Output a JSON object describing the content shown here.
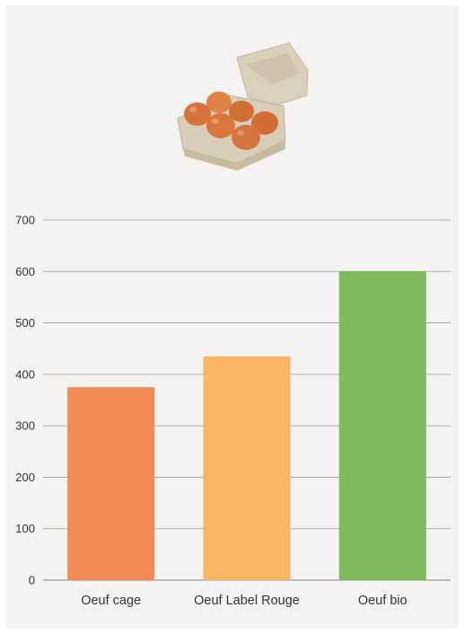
{
  "colors": {
    "background": "#f5f3f1",
    "gridline": "#9a9a9a",
    "text": "#333333",
    "carton": "#d8cdb8",
    "egg": "#d9773f"
  },
  "illustration": {
    "icon": "egg-carton-icon"
  },
  "chart_data": {
    "type": "bar",
    "categories": [
      "Oeuf cage",
      "Oeuf Label Rouge",
      "Oeuf bio"
    ],
    "values": [
      375,
      435,
      600
    ],
    "colors": [
      "#f28c55",
      "#f8b564",
      "#7dbb5d"
    ],
    "ylim": [
      0,
      700
    ],
    "yticks": [
      0,
      100,
      200,
      300,
      400,
      500,
      600,
      700
    ],
    "grid": true,
    "title": "",
    "xlabel": "",
    "ylabel": ""
  }
}
